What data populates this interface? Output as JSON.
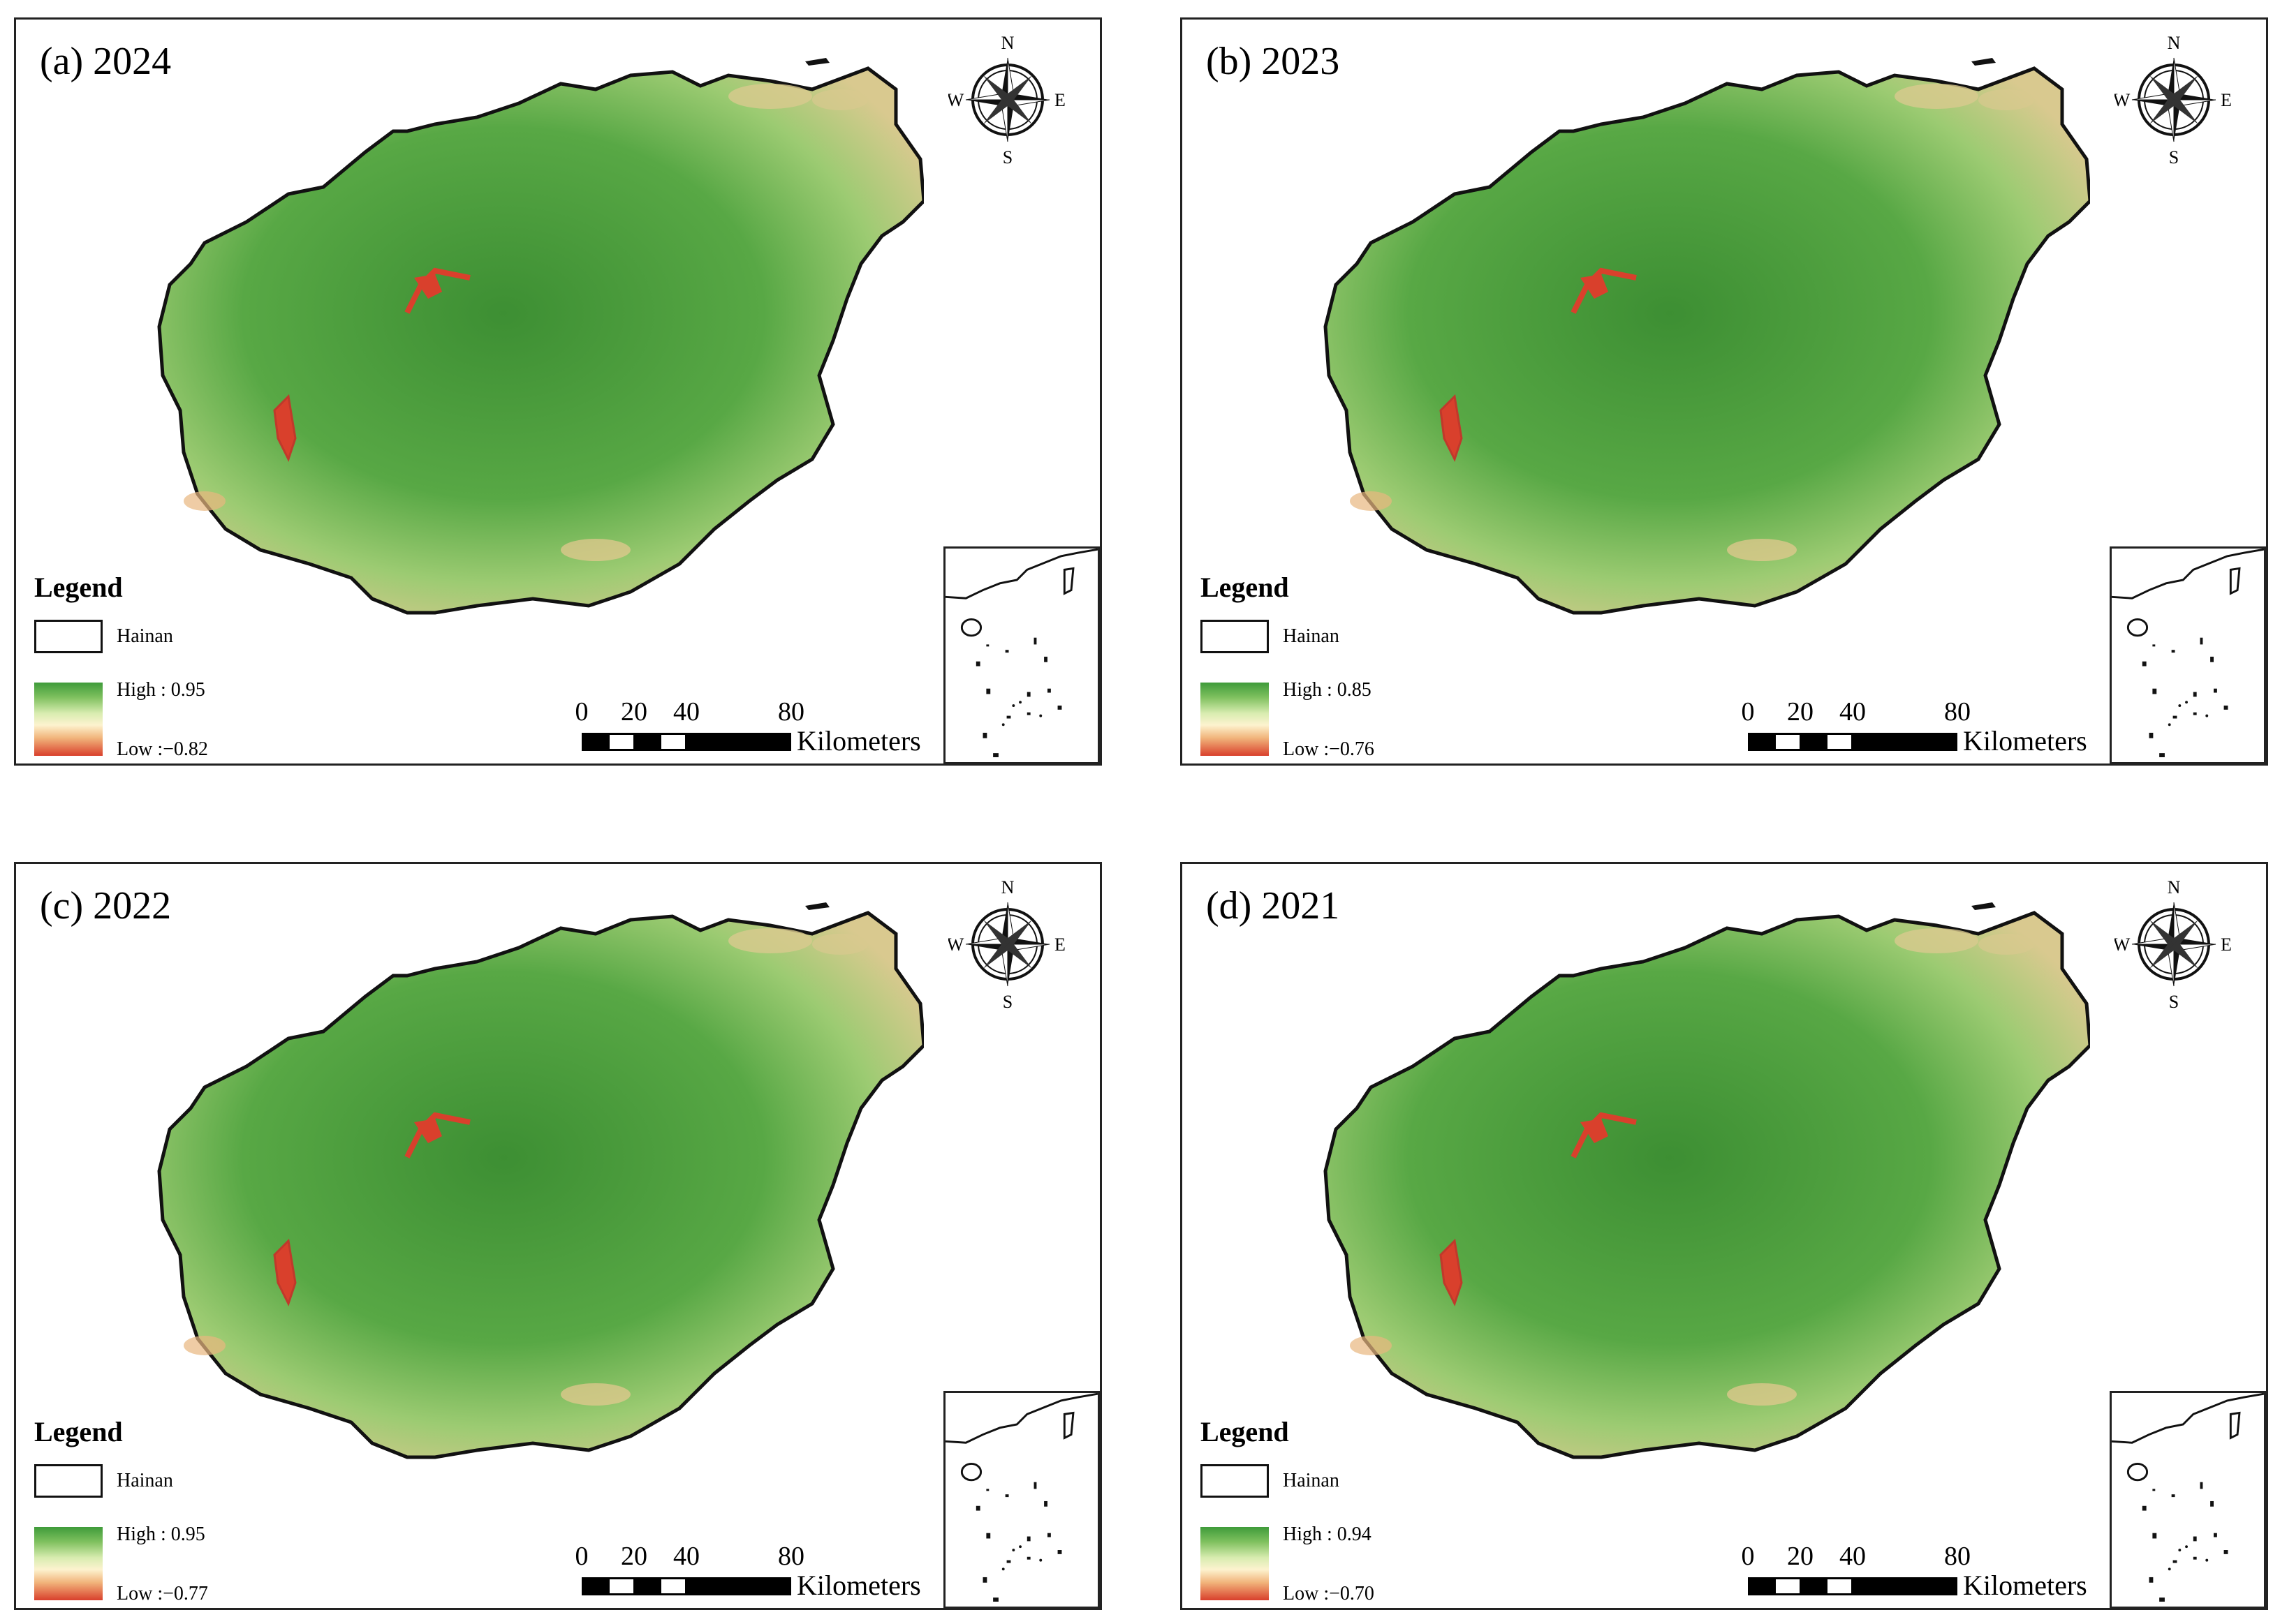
{
  "colors": {
    "high": "#3f9b3a",
    "mid": "#fdf3cf",
    "low": "#d9402c",
    "outline": "#111111"
  },
  "compass": {
    "n": "N",
    "s": "S",
    "e": "E",
    "w": "W"
  },
  "scale_bar": {
    "ticks": [
      "0",
      "20",
      "40",
      "80"
    ],
    "unit": "Kilometers"
  },
  "legend": {
    "title": "Legend",
    "boundary_label": "Hainan"
  },
  "panels": [
    {
      "title": "(a) 2024",
      "high": "High  : 0.95",
      "low": "Low :−0.82"
    },
    {
      "title": "(b) 2023",
      "high": "High  : 0.85",
      "low": "Low :−0.76"
    },
    {
      "title": "(c) 2022",
      "high": "High : 0.95",
      "low": "Low :−0.77"
    },
    {
      "title": "(d) 2021",
      "high": "High : 0.94",
      "low": "Low :−0.70"
    }
  ]
}
